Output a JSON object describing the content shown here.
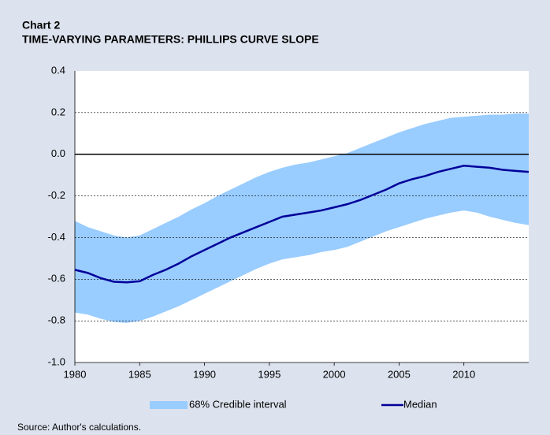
{
  "chart_data": {
    "type": "line",
    "title": "Chart 2",
    "subtitle": "TIME-VARYING PARAMETERS: PHILLIPS CURVE SLOPE",
    "source": "Source: Author's calculations.",
    "x": [
      1980,
      1981,
      1982,
      1983,
      1984,
      1985,
      1986,
      1987,
      1988,
      1989,
      1990,
      1991,
      1992,
      1993,
      1994,
      1995,
      1996,
      1997,
      1998,
      1999,
      2000,
      2001,
      2002,
      2003,
      2004,
      2005,
      2006,
      2007,
      2008,
      2009,
      2010,
      2011,
      2012,
      2013,
      2014,
      2015
    ],
    "xlim": [
      1980,
      2015
    ],
    "xticks": [
      1980,
      1985,
      1990,
      1995,
      2000,
      2005,
      2010
    ],
    "ylim": [
      -1.0,
      0.4
    ],
    "yticks": [
      0.4,
      0.2,
      {
        "value": 0,
        "label": "0.0"
      },
      -0.2,
      -0.4,
      -0.6,
      -0.8,
      {
        "value": -1.0,
        "label": "-1.0"
      }
    ],
    "grid": true,
    "series": [
      {
        "name": "68% Credible interval",
        "type": "area",
        "color": "#99ccff",
        "low": [
          -0.76,
          -0.77,
          -0.79,
          -0.805,
          -0.81,
          -0.8,
          -0.78,
          -0.755,
          -0.73,
          -0.7,
          -0.67,
          -0.64,
          -0.61,
          -0.58,
          -0.55,
          -0.525,
          -0.505,
          -0.495,
          -0.485,
          -0.47,
          -0.46,
          -0.445,
          -0.42,
          -0.395,
          -0.37,
          -0.35,
          -0.33,
          -0.31,
          -0.295,
          -0.28,
          -0.27,
          -0.28,
          -0.3,
          -0.315,
          -0.33,
          -0.34
        ],
        "high": [
          -0.32,
          -0.35,
          -0.37,
          -0.39,
          -0.4,
          -0.39,
          -0.36,
          -0.33,
          -0.3,
          -0.265,
          -0.235,
          -0.2,
          -0.17,
          -0.14,
          -0.11,
          -0.085,
          -0.065,
          -0.05,
          -0.04,
          -0.025,
          -0.01,
          0.005,
          0.03,
          0.055,
          0.08,
          0.105,
          0.125,
          0.145,
          0.16,
          0.175,
          0.18,
          0.185,
          0.19,
          0.19,
          0.195,
          0.195
        ]
      },
      {
        "name": "Median",
        "type": "line",
        "color": "#000099",
        "values": [
          -0.555,
          -0.57,
          -0.595,
          -0.612,
          -0.615,
          -0.61,
          -0.58,
          -0.555,
          -0.525,
          -0.49,
          -0.46,
          -0.43,
          -0.4,
          -0.375,
          -0.35,
          -0.325,
          -0.3,
          -0.29,
          -0.28,
          -0.27,
          -0.255,
          -0.24,
          -0.22,
          -0.195,
          -0.17,
          -0.14,
          -0.12,
          -0.105,
          -0.085,
          -0.07,
          -0.055,
          -0.06,
          -0.065,
          -0.075,
          -0.08,
          -0.085
        ]
      }
    ]
  }
}
